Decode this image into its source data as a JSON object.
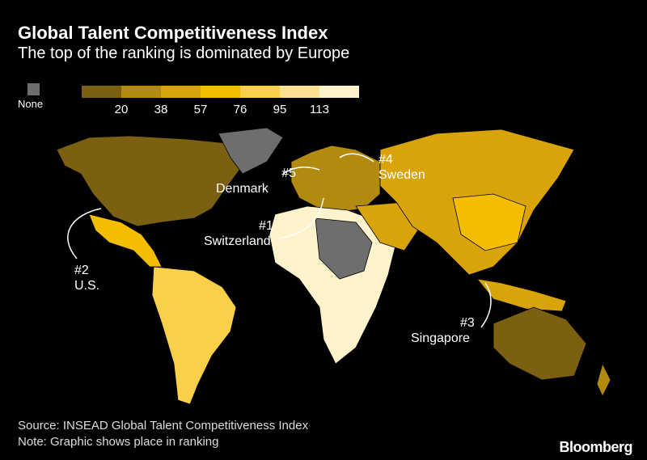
{
  "title": "Global Talent Competitiveness Index",
  "subtitle": "The top of the ranking is dominated by Europe",
  "legend": {
    "none_label": "None",
    "none_color": "#6e6e6e",
    "colors": [
      "#7a6010",
      "#b38a10",
      "#d9a40a",
      "#f5bd00",
      "#fad04a",
      "#fde090",
      "#fff3cc"
    ],
    "ticks": [
      "20",
      "38",
      "57",
      "76",
      "95",
      "113"
    ]
  },
  "annotations": [
    {
      "rank": "#2",
      "country": "U.S."
    },
    {
      "rank": "#5",
      "country": "Denmark"
    },
    {
      "rank": "#1",
      "country": "Switzerland"
    },
    {
      "rank": "#4",
      "country": "Sweden"
    },
    {
      "rank": "#3",
      "country": "Singapore"
    }
  ],
  "source": "Source: INSEAD Global Talent Competitiveness Index",
  "note": "Note: Graphic shows place in ranking",
  "logo": "Bloomberg"
}
